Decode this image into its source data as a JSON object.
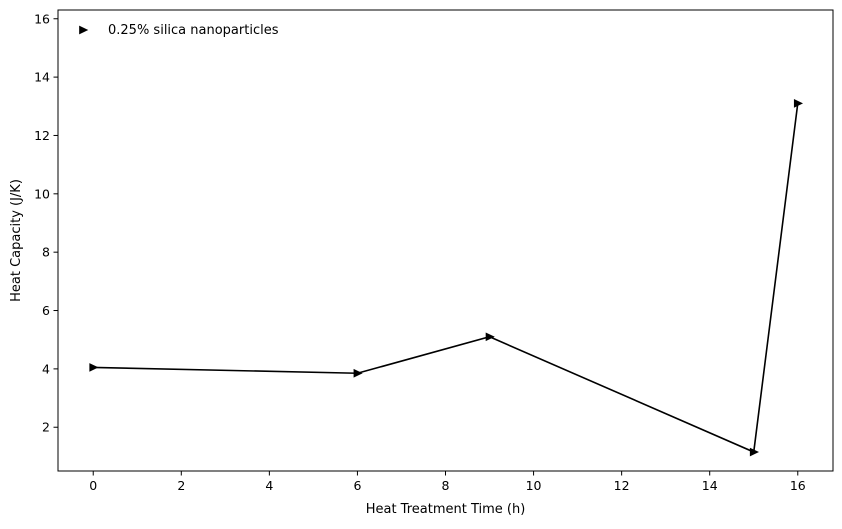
{
  "chart_data": {
    "type": "line",
    "title": "",
    "xlabel": "Heat Treatment Time (h)",
    "ylabel": "Heat Capacity (J/K)",
    "xlim": [
      -0.8,
      16.8
    ],
    "ylim": [
      0.5,
      16.3
    ],
    "x_ticks": [
      0,
      2,
      4,
      6,
      8,
      10,
      12,
      14,
      16
    ],
    "y_ticks": [
      2,
      4,
      6,
      8,
      10,
      12,
      14,
      16
    ],
    "grid": false,
    "legend_position": "top-left",
    "series": [
      {
        "name": "0.25% silica nanoparticles",
        "color": "#000000",
        "marker": "triangle-right",
        "x": [
          0,
          6,
          9,
          15,
          16
        ],
        "y": [
          4.05,
          3.85,
          5.1,
          1.15,
          13.1
        ]
      }
    ]
  }
}
